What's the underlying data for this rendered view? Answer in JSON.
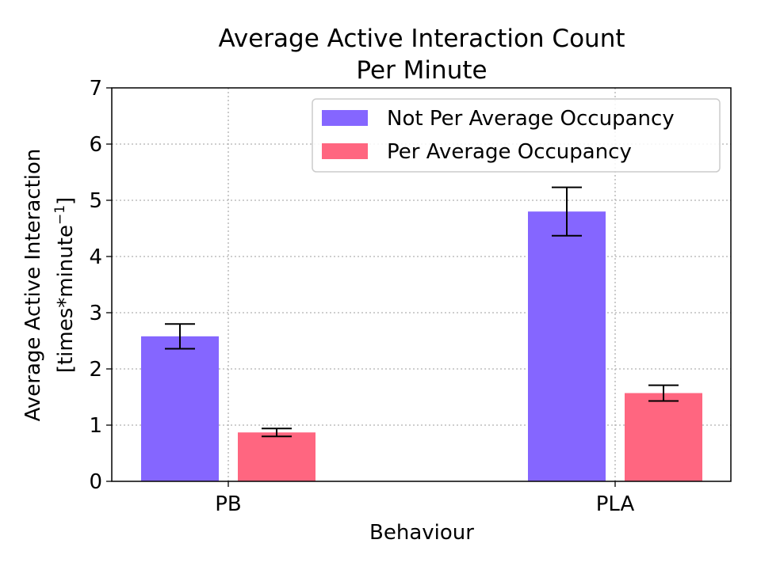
{
  "chart_data": {
    "type": "bar",
    "title_lines": [
      "Average Active Interaction Count",
      "Per Minute"
    ],
    "xlabel": "Behaviour",
    "ylabel_lines": [
      "Average Active Interaction",
      "[times*minute",
      "−1",
      "]"
    ],
    "categories": [
      "PB",
      "PLA"
    ],
    "ylim": [
      0,
      7
    ],
    "yticks": [
      "0",
      "1",
      "2",
      "3",
      "4",
      "5",
      "6",
      "7"
    ],
    "grid": true,
    "legend_position": "top-right",
    "series": [
      {
        "name": "Not Per Average Occupancy",
        "color": "#8566ff",
        "values": [
          2.58,
          4.8
        ],
        "err_low": [
          2.36,
          4.37
        ],
        "err_high": [
          2.8,
          5.23
        ]
      },
      {
        "name": "Per Average Occupancy",
        "color": "#ff6680",
        "values": [
          0.87,
          1.57
        ],
        "err_low": [
          0.8,
          1.43
        ],
        "err_high": [
          0.94,
          1.71
        ]
      }
    ]
  }
}
